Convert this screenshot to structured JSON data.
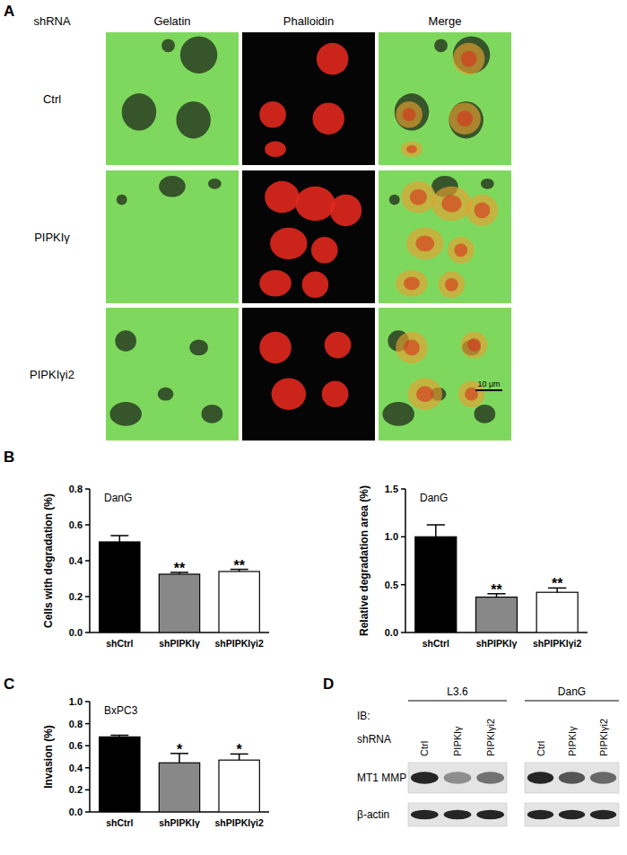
{
  "chart_data": [
    {
      "type": "bar",
      "title": "DanG",
      "y_label": "Cells with degradation (%)",
      "categories": [
        "shCtrl",
        "shPIPKIγ",
        "shPIPKIγi2"
      ],
      "values": [
        0.505,
        0.325,
        0.34
      ],
      "errors": [
        0.035,
        0.01,
        0.012
      ],
      "significance": [
        null,
        "**",
        "**"
      ],
      "colors": [
        "#000000",
        "#888888",
        "#ffffff"
      ],
      "ylim": [
        0,
        0.8
      ],
      "yticks": [
        {
          "value": 0,
          "label": "0.0"
        },
        0.2,
        0.4,
        0.6,
        0.8
      ]
    },
    {
      "type": "bar",
      "title": "DanG",
      "y_label": "Relative degradation area (%)",
      "categories": [
        "shCtrl",
        "shPIPKIγ",
        "shPIPKIγi2"
      ],
      "values": [
        1.0,
        0.37,
        0.42
      ],
      "errors": [
        0.125,
        0.035,
        0.045
      ],
      "significance": [
        null,
        "**",
        "**"
      ],
      "colors": [
        "#000000",
        "#888888",
        "#ffffff"
      ],
      "ylim": [
        0,
        1.5
      ],
      "yticks": [
        {
          "value": 0,
          "label": "0.0"
        },
        0.5,
        {
          "value": 1,
          "label": "1.0"
        },
        1.5
      ]
    },
    {
      "type": "bar",
      "title": "BxPC3",
      "y_label": "Invasion (%)",
      "categories": [
        "shCtrl",
        "shPIPKIγ",
        "shPIPKIγi2"
      ],
      "values": [
        0.68,
        0.445,
        0.47
      ],
      "errors": [
        0.015,
        0.085,
        0.055
      ],
      "significance": [
        null,
        "*",
        "*"
      ],
      "colors": [
        "#000000",
        "#888888",
        "#ffffff"
      ],
      "ylim": [
        0,
        1.0
      ],
      "yticks": [
        {
          "value": 0,
          "label": "0.0"
        },
        0.2,
        0.4,
        0.6,
        0.8,
        {
          "value": 1,
          "label": "1.0"
        }
      ]
    }
  ],
  "panel_labels": [
    "A",
    "B",
    "C",
    "D"
  ],
  "microscopy": {
    "header": "shRNA",
    "columns": [
      "Gelatin",
      "Phalloidin",
      "Merge"
    ],
    "rows": [
      "Ctrl",
      "PIPKIγ",
      "PIPKIγi2"
    ],
    "scale_bar": "10 μm"
  },
  "blot": {
    "ib_label": "IB:",
    "shrna_label": "shRNA",
    "groups": [
      {
        "name": "L3.6",
        "lanes": [
          "Ctrl",
          "PIPKIγ",
          "PIPKIγi2"
        ]
      },
      {
        "name": "DanG",
        "lanes": [
          "Ctrl",
          "PIPKIγ",
          "PIPKIγi2"
        ]
      }
    ],
    "rows": [
      {
        "name": "MT1 MMP",
        "intensities": [
          [
            1,
            0.45,
            0.6
          ],
          [
            1,
            0.75,
            0.65
          ]
        ]
      },
      {
        "name": "β-actin",
        "intensities": [
          [
            1,
            1,
            1
          ],
          [
            1,
            1,
            1
          ]
        ]
      }
    ]
  }
}
